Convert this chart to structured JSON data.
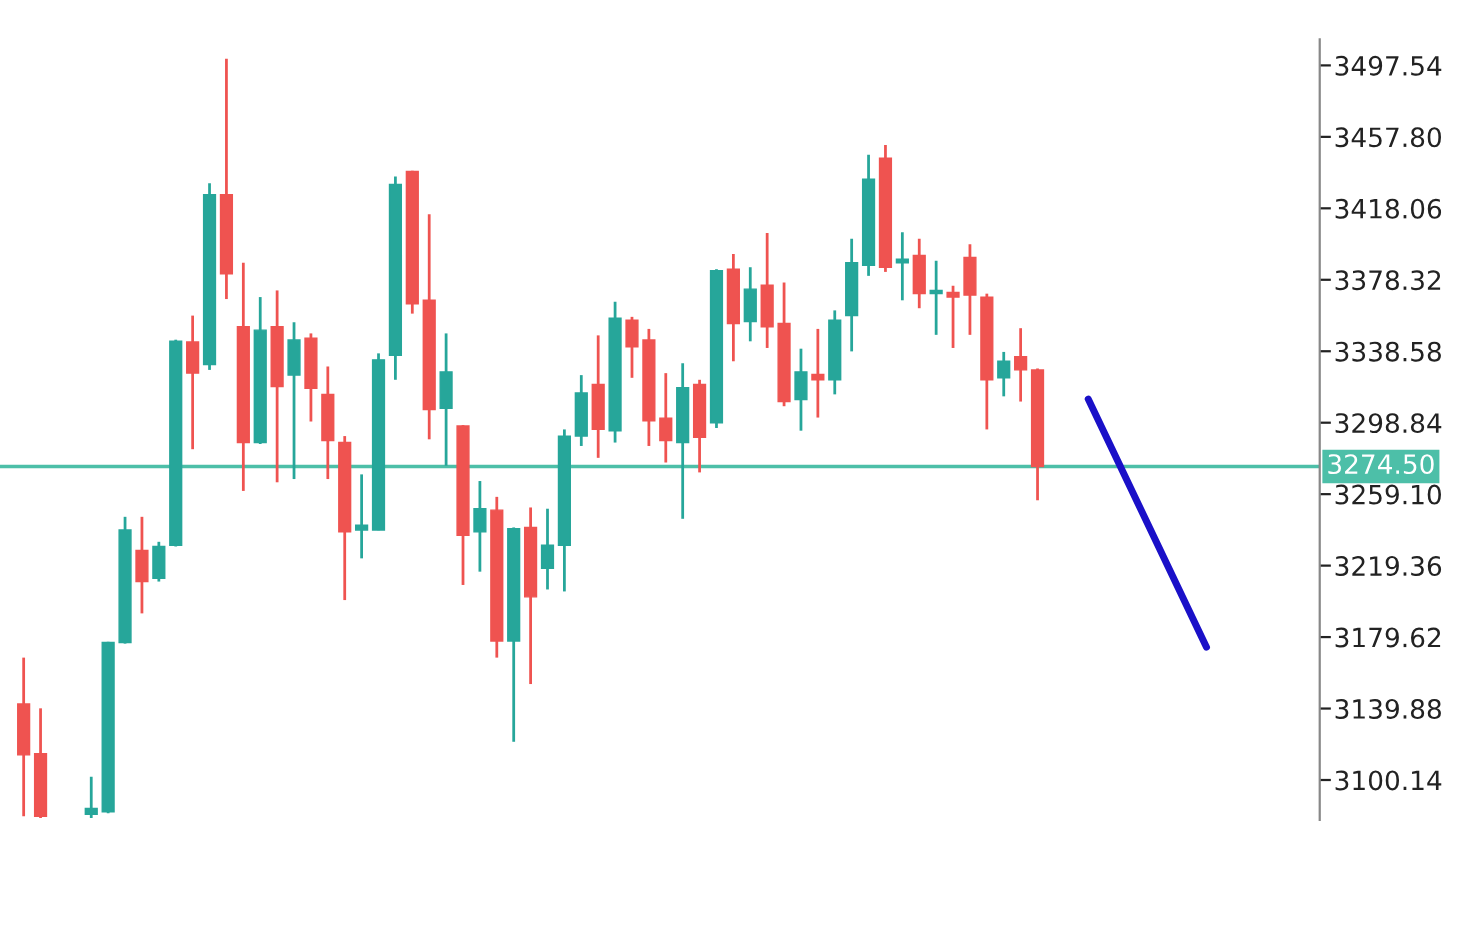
{
  "chart_data": {
    "type": "candlestick",
    "categories": [
      null,
      null,
      null,
      null,
      null,
      null,
      null,
      null,
      null,
      null,
      null,
      null,
      null,
      null,
      null,
      null,
      null,
      null,
      null,
      null,
      null,
      null,
      null,
      null,
      null,
      null,
      null,
      null,
      null,
      null,
      null,
      null,
      null,
      null,
      null,
      null,
      null,
      null,
      null,
      null,
      null,
      null,
      null,
      null,
      null,
      null,
      null,
      null,
      null,
      null,
      null,
      null,
      null,
      null,
      null,
      null,
      null,
      null,
      null,
      null,
      null,
      null,
      null,
      null,
      null,
      null,
      null,
      null,
      null,
      null,
      null
    ],
    "ohlc": [
      [
        3142.4,
        3168.2,
        3080,
        3114.1
      ],
      [
        3114.8,
        3140,
        3079,
        3080
      ],
      null,
      null,
      [
        3081,
        3101.9,
        3079,
        3084.3
      ],
      [
        3082.4,
        3177,
        3081.7,
        3176.6
      ],
      [
        3176.6,
        3246.5,
        3176,
        3239.2
      ],
      [
        3227.8,
        3246.5,
        3192.8,
        3210.5
      ],
      [
        3212.3,
        3232.6,
        3210.5,
        3230.0
      ],
      [
        3230.7,
        3345,
        3230,
        3344.1
      ],
      [
        3343.7,
        3358.4,
        3284.1,
        3326.4
      ],
      [
        3331.2,
        3432.0,
        3328.2,
        3425.7
      ],
      [
        3425.7,
        3501.2,
        3367.6,
        3381.6
      ],
      [
        3352.2,
        3387.8,
        3260.9,
        3287.8
      ],
      [
        3287.8,
        3368.7,
        3287,
        3350.3
      ],
      [
        3352.2,
        3372.4,
        3265.7,
        3319.0
      ],
      [
        3325.3,
        3354.7,
        3267.5,
        3344.8
      ],
      [
        3345.9,
        3348.5,
        3299.5,
        3317.9
      ],
      [
        3314.6,
        3330.1,
        3267.5,
        3288.9
      ],
      [
        3287.8,
        3291.4,
        3200.2,
        3238.1
      ],
      [
        3239.2,
        3270.1,
        3223.4,
        3241.8
      ],
      [
        3239.2,
        3337.4,
        3239,
        3333.8
      ],
      [
        3336.3,
        3435.7,
        3322.7,
        3431.3
      ],
      [
        3438.6,
        3439,
        3359.5,
        3365.0
      ],
      [
        3366.9,
        3414.7,
        3289.6,
        3306.2
      ],
      [
        3306.9,
        3348.5,
        3274.9,
        3327.1
      ],
      [
        3297.0,
        3297.5,
        3208.6,
        3236.2
      ],
      [
        3238.1,
        3266.4,
        3216.0,
        3251.0
      ],
      [
        3250.2,
        3257.6,
        3168.2,
        3177.4
      ],
      [
        3177.4,
        3240.6,
        3121.4,
        3239.9
      ],
      [
        3240.6,
        3251.7,
        3153.5,
        3202.0
      ],
      [
        3217.8,
        3251.0,
        3206.1,
        3230.7
      ],
      [
        3230.7,
        3295.1,
        3205.0,
        3291.4
      ],
      [
        3291.4,
        3325.3,
        3285.9,
        3315.4
      ],
      [
        3320.1,
        3347.4,
        3279.3,
        3295.1
      ],
      [
        3294.4,
        3366.1,
        3287.8,
        3356.9
      ],
      [
        3355.8,
        3357.7,
        3323.8,
        3341.1
      ],
      [
        3344.8,
        3351.0,
        3285.9,
        3299.9
      ],
      [
        3301.4,
        3326.4,
        3276.7,
        3288.9
      ],
      [
        3287.8,
        3331.9,
        3245.4,
        3318.3
      ],
      [
        3320.1,
        3322.7,
        3271.2,
        3290.7
      ],
      [
        3298.8,
        3384.2,
        3295.9,
        3383.4
      ],
      [
        3384.2,
        3392.6,
        3333.0,
        3354.0
      ],
      [
        3355.1,
        3385.3,
        3344.1,
        3373.1
      ],
      [
        3375.3,
        3404.4,
        3340.4,
        3352.2
      ],
      [
        3354.0,
        3376.8,
        3308.0,
        3310.6
      ],
      [
        3311.7,
        3340.0,
        3294.4,
        3327.1
      ],
      [
        3325.7,
        3351.0,
        3301.7,
        3322.7
      ],
      [
        3322.7,
        3361.3,
        3314.6,
        3355.8
      ],
      [
        3358.4,
        3401.1,
        3338.5,
        3387.8
      ],
      [
        3386.4,
        3447.8,
        3380.5,
        3434.2
      ],
      [
        3446.0,
        3453.3,
        3382.7,
        3385.3
      ],
      [
        3387.8,
        3404.8,
        3366.9,
        3389.7
      ],
      [
        3391.9,
        3401.1,
        3362.5,
        3370.6
      ],
      [
        3370.6,
        3388.9,
        3347.7,
        3372.4
      ],
      [
        3371.3,
        3375.0,
        3340.4,
        3368.7
      ],
      [
        3390.8,
        3398.1,
        3347.7,
        3369.8
      ],
      [
        3368.7,
        3370.6,
        3295.1,
        3322.7
      ],
      [
        3323.8,
        3338.2,
        3313.5,
        3333.0
      ],
      [
        3335.6,
        3351.4,
        3310.6,
        3328.2
      ],
      [
        3328.2,
        3329,
        3255.7,
        3274.5
      ],
      null,
      null,
      null,
      null,
      null,
      null,
      null,
      null,
      null,
      null
    ],
    "colors": [
      "#ef5350",
      "#ef5350",
      null,
      null,
      "#26a69a",
      "#26a69a",
      "#26a69a",
      "#ef5350",
      "#26a69a",
      "#26a69a",
      "#ef5350",
      "#26a69a",
      "#ef5350",
      "#ef5350",
      "#26a69a",
      "#ef5350",
      "#26a69a",
      "#ef5350",
      "#ef5350",
      "#ef5350",
      "#26a69a",
      "#26a69a",
      "#26a69a",
      "#ef5350",
      "#ef5350",
      "#26a69a",
      "#ef5350",
      "#26a69a",
      "#ef5350",
      "#26a69a",
      "#ef5350",
      "#26a69a",
      "#26a69a",
      "#26a69a",
      "#ef5350",
      "#26a69a",
      "#ef5350",
      "#ef5350",
      "#ef5350",
      "#26a69a",
      "#ef5350",
      "#26a69a",
      "#ef5350",
      "#26a69a",
      "#ef5350",
      "#ef5350",
      "#26a69a",
      "#ef5350",
      "#26a69a",
      "#26a69a",
      "#26a69a",
      "#ef5350",
      "#26a69a",
      "#ef5350",
      "#26a69a",
      "#ef5350",
      "#ef5350",
      "#ef5350",
      "#26a69a",
      "#ef5350",
      "#ef5350",
      null,
      null,
      null,
      null,
      null,
      null,
      null,
      null,
      null,
      null
    ],
    "series": [
      {
        "type": "line",
        "color": "#1a10c8",
        "values": [
          null,
          null,
          null,
          null,
          null,
          null,
          null,
          null,
          null,
          null,
          null,
          null,
          null,
          null,
          null,
          null,
          null,
          null,
          null,
          null,
          null,
          null,
          null,
          null,
          null,
          null,
          null,
          null,
          null,
          null,
          null,
          null,
          null,
          null,
          null,
          null,
          null,
          null,
          null,
          null,
          null,
          null,
          null,
          null,
          null,
          null,
          null,
          null,
          null,
          null,
          null,
          null,
          null,
          null,
          null,
          null,
          null,
          null,
          null,
          null,
          null,
          null,
          null,
          3312,
          null,
          null,
          null,
          null,
          null,
          null,
          3174
        ]
      }
    ],
    "ylim": [
      3078,
      3512
    ],
    "yticks": [
      3497.54,
      {
        "value": 3457.8,
        "label": "3457.80"
      },
      3418.06,
      3378.32,
      3338.58,
      3298.84,
      {
        "value": 3259.1,
        "label": "3259.10"
      },
      3219.36,
      3179.62,
      3139.88,
      3100.14
    ],
    "ref_lines": [
      {
        "axis": "y",
        "value": 3274.5,
        "label": "3274.50",
        "color": "#4dbfa8"
      }
    ],
    "tick_labels": "y",
    "grid": false,
    "legend": false
  }
}
